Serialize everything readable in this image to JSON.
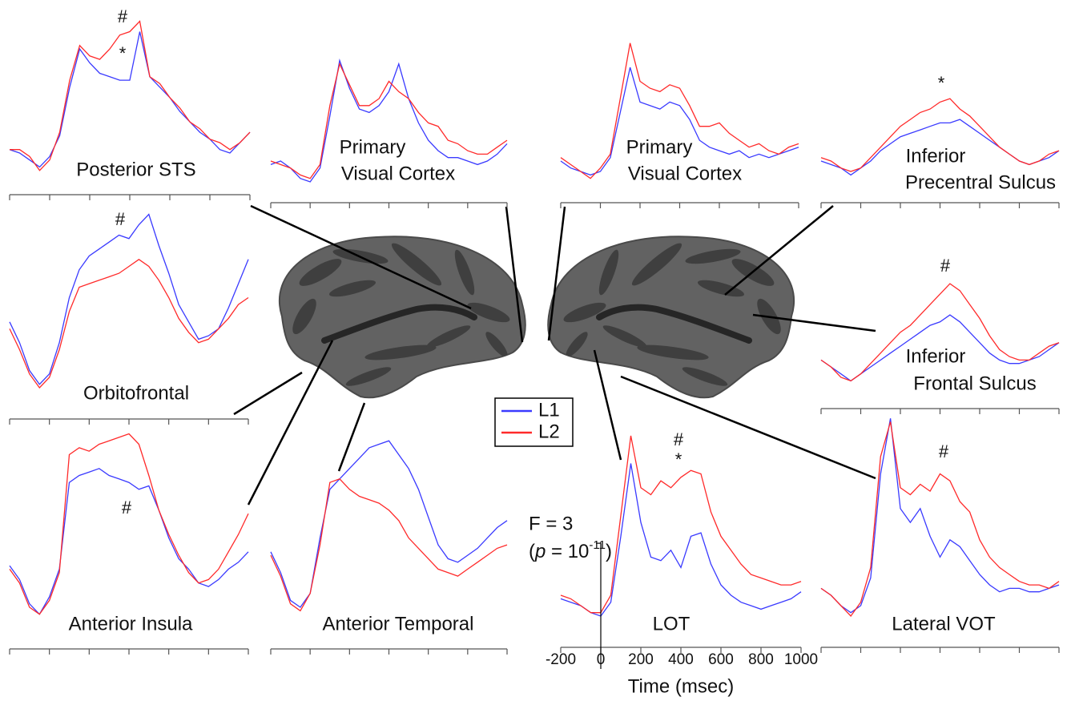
{
  "chart_data": [
    {
      "type": "line",
      "title": [
        "Posterior STS"
      ],
      "annotations": [
        "#",
        "*"
      ],
      "x": [
        -200,
        -150,
        -100,
        -50,
        0,
        50,
        100,
        150,
        200,
        250,
        300,
        350,
        400,
        450,
        500,
        550,
        600,
        650,
        700,
        750,
        800,
        850,
        900,
        950,
        1000
      ],
      "xlim": [
        -200,
        1000
      ],
      "xticks": [
        -200,
        0,
        200,
        400,
        600,
        800,
        1000
      ],
      "show_xtick_labels": false,
      "ylim": [
        0,
        5.4
      ],
      "series": [
        {
          "color": "#3a3aff",
          "values": [
            1.3,
            1.2,
            1.0,
            0.8,
            1.1,
            1.7,
            3.1,
            4.2,
            3.8,
            3.5,
            3.4,
            3.3,
            3.3,
            4.7,
            3.4,
            3.1,
            2.8,
            2.4,
            2.1,
            1.8,
            1.6,
            1.3,
            1.2,
            1.5,
            1.8
          ]
        },
        {
          "color": "#ff2a2a",
          "values": [
            1.3,
            1.3,
            1.1,
            0.7,
            1.0,
            1.8,
            3.3,
            4.3,
            4.0,
            3.9,
            4.2,
            4.6,
            4.7,
            5.0,
            3.4,
            3.2,
            2.8,
            2.5,
            2.1,
            1.9,
            1.6,
            1.5,
            1.3,
            1.5,
            1.8
          ]
        }
      ]
    },
    {
      "type": "line",
      "title": [
        "Primary",
        "Visual Cortex"
      ],
      "annotations": [],
      "x": [
        -200,
        -150,
        -100,
        -50,
        0,
        50,
        100,
        150,
        200,
        250,
        300,
        350,
        400,
        450,
        500,
        550,
        600,
        650,
        700,
        750,
        800,
        850,
        900,
        950,
        1000
      ],
      "xlim": [
        -200,
        1000
      ],
      "xticks": [
        -200,
        0,
        200,
        400,
        600,
        800,
        1000
      ],
      "show_xtick_labels": false,
      "ylim": [
        0,
        4.2
      ],
      "series": [
        {
          "color": "#3a3aff",
          "values": [
            1.1,
            1.2,
            1.0,
            0.7,
            0.6,
            1.0,
            2.5,
            4.1,
            3.3,
            2.7,
            2.6,
            2.8,
            3.2,
            4.0,
            3.0,
            2.3,
            1.8,
            1.5,
            1.3,
            1.3,
            1.2,
            1.1,
            1.2,
            1.4,
            1.7
          ]
        },
        {
          "color": "#ff2a2a",
          "values": [
            1.2,
            1.1,
            1.0,
            0.8,
            0.7,
            1.1,
            2.8,
            4.0,
            3.4,
            2.8,
            2.8,
            3.0,
            3.5,
            3.2,
            3.0,
            2.6,
            2.3,
            2.2,
            1.8,
            1.7,
            1.5,
            1.4,
            1.4,
            1.6,
            1.8
          ]
        }
      ]
    },
    {
      "type": "line",
      "title": [
        "Primary",
        "Visual Cortex"
      ],
      "annotations": [],
      "x": [
        -200,
        -150,
        -100,
        -50,
        0,
        50,
        100,
        150,
        200,
        250,
        300,
        350,
        400,
        450,
        500,
        550,
        600,
        650,
        700,
        750,
        800,
        850,
        900,
        950,
        1000
      ],
      "xlim": [
        -200,
        1000
      ],
      "xticks": [
        -200,
        0,
        200,
        400,
        600,
        800,
        1000
      ],
      "show_xtick_labels": false,
      "ylim": [
        0,
        4.7
      ],
      "series": [
        {
          "color": "#3a3aff",
          "values": [
            1.2,
            1.0,
            0.9,
            0.8,
            0.9,
            1.3,
            2.6,
            3.9,
            2.9,
            2.8,
            2.7,
            2.9,
            2.8,
            2.4,
            1.8,
            1.6,
            1.5,
            1.4,
            1.5,
            1.3,
            1.4,
            1.3,
            1.4,
            1.5,
            1.6
          ]
        },
        {
          "color": "#ff2a2a",
          "values": [
            1.3,
            1.1,
            0.9,
            0.7,
            1.0,
            1.4,
            3.0,
            4.6,
            3.5,
            3.3,
            3.2,
            3.4,
            3.3,
            2.8,
            2.2,
            2.2,
            2.3,
            2.0,
            1.8,
            1.6,
            1.7,
            1.5,
            1.4,
            1.6,
            1.7
          ]
        }
      ]
    },
    {
      "type": "line",
      "title": [
        "Inferior",
        "Precentral Sulcus"
      ],
      "annotations": [
        "*"
      ],
      "x": [
        -200,
        -150,
        -100,
        -50,
        0,
        50,
        100,
        150,
        200,
        250,
        300,
        350,
        400,
        450,
        500,
        550,
        600,
        650,
        700,
        750,
        800,
        850,
        900,
        950,
        1000
      ],
      "xlim": [
        -200,
        1000
      ],
      "xticks": [
        -200,
        0,
        200,
        400,
        600,
        800,
        1000
      ],
      "show_xtick_labels": false,
      "ylim": [
        0,
        3.5
      ],
      "series": [
        {
          "color": "#3a3aff",
          "values": [
            1.2,
            1.1,
            1.0,
            0.8,
            1.0,
            1.2,
            1.5,
            1.7,
            1.9,
            2.0,
            2.1,
            2.2,
            2.3,
            2.3,
            2.4,
            2.2,
            2.0,
            1.8,
            1.6,
            1.4,
            1.2,
            1.1,
            1.2,
            1.3,
            1.5
          ]
        },
        {
          "color": "#ff2a2a",
          "values": [
            1.3,
            1.2,
            1.0,
            0.9,
            1.0,
            1.3,
            1.6,
            1.9,
            2.2,
            2.4,
            2.6,
            2.7,
            2.9,
            3.0,
            2.7,
            2.5,
            2.2,
            1.9,
            1.6,
            1.4,
            1.2,
            1.1,
            1.2,
            1.4,
            1.5
          ]
        }
      ]
    },
    {
      "type": "line",
      "title": [
        "Orbitofrontal"
      ],
      "annotations": [
        "#"
      ],
      "x": [
        -200,
        -150,
        -100,
        -50,
        0,
        50,
        100,
        150,
        200,
        250,
        300,
        350,
        400,
        450,
        500,
        550,
        600,
        650,
        700,
        750,
        800,
        850,
        900,
        950,
        1000
      ],
      "xlim": [
        -200,
        1000
      ],
      "xticks": [
        -200,
        0,
        200,
        400,
        600,
        800,
        1000
      ],
      "show_xtick_labels": false,
      "ylim": [
        0,
        6.1
      ],
      "series": [
        {
          "color": "#3a3aff",
          "values": [
            2.8,
            2.2,
            1.4,
            1.0,
            1.3,
            2.2,
            3.5,
            4.3,
            4.7,
            4.9,
            5.1,
            5.3,
            5.2,
            5.6,
            5.9,
            5.0,
            4.2,
            3.3,
            2.8,
            2.3,
            2.4,
            2.6,
            3.2,
            3.9,
            4.6
          ]
        },
        {
          "color": "#ff2a2a",
          "values": [
            2.6,
            2.0,
            1.3,
            0.9,
            1.2,
            2.0,
            3.1,
            3.8,
            3.9,
            4.0,
            4.1,
            4.2,
            4.4,
            4.6,
            4.4,
            4.0,
            3.5,
            2.9,
            2.5,
            2.2,
            2.3,
            2.6,
            2.9,
            3.3,
            3.5
          ]
        }
      ]
    },
    {
      "type": "line",
      "title": [
        "Inferior",
        "Frontal Sulcus"
      ],
      "annotations": [
        "#"
      ],
      "x": [
        -200,
        -150,
        -100,
        -50,
        0,
        50,
        100,
        150,
        200,
        250,
        300,
        350,
        400,
        450,
        500,
        550,
        600,
        650,
        700,
        750,
        800,
        850,
        900,
        950,
        1000
      ],
      "xlim": [
        -200,
        1000
      ],
      "xticks": [
        -200,
        0,
        200,
        400,
        600,
        800,
        1000
      ],
      "show_xtick_labels": false,
      "ylim": [
        0,
        3.9
      ],
      "series": [
        {
          "color": "#3a3aff",
          "values": [
            1.4,
            1.2,
            1.0,
            0.8,
            1.0,
            1.2,
            1.4,
            1.6,
            1.8,
            2.0,
            2.2,
            2.4,
            2.5,
            2.7,
            2.5,
            2.2,
            1.9,
            1.6,
            1.4,
            1.3,
            1.3,
            1.4,
            1.5,
            1.7,
            1.9
          ]
        },
        {
          "color": "#ff2a2a",
          "values": [
            1.4,
            1.2,
            0.9,
            0.8,
            1.0,
            1.3,
            1.6,
            1.9,
            2.2,
            2.4,
            2.7,
            3.0,
            3.3,
            3.6,
            3.4,
            3.0,
            2.6,
            2.1,
            1.7,
            1.5,
            1.4,
            1.4,
            1.6,
            1.8,
            1.9
          ]
        }
      ]
    },
    {
      "type": "line",
      "title": [
        "Anterior Insula"
      ],
      "annotations": [
        "#"
      ],
      "x": [
        -200,
        -150,
        -100,
        -50,
        0,
        50,
        100,
        150,
        200,
        250,
        300,
        350,
        400,
        450,
        500,
        550,
        600,
        650,
        700,
        750,
        800,
        850,
        900,
        950,
        1000
      ],
      "xlim": [
        -200,
        1000
      ],
      "xticks": [
        -200,
        0,
        200,
        400,
        600,
        800,
        1000
      ],
      "show_xtick_labels": false,
      "ylim": [
        0,
        6.4
      ],
      "series": [
        {
          "color": "#3a3aff",
          "values": [
            2.4,
            2.0,
            1.3,
            1.0,
            1.5,
            2.3,
            4.8,
            5.0,
            5.1,
            5.2,
            5.0,
            4.9,
            4.8,
            4.6,
            4.7,
            4.0,
            3.2,
            2.6,
            2.3,
            1.9,
            1.8,
            2.0,
            2.3,
            2.5,
            2.8
          ]
        },
        {
          "color": "#ff2a2a",
          "values": [
            2.3,
            1.9,
            1.2,
            1.0,
            1.4,
            2.2,
            5.6,
            5.8,
            5.7,
            5.9,
            6.0,
            6.1,
            6.2,
            5.9,
            5.0,
            4.0,
            3.3,
            2.7,
            2.2,
            1.9,
            2.0,
            2.3,
            2.8,
            3.3,
            3.9
          ]
        }
      ]
    },
    {
      "type": "line",
      "title": [
        "Anterior Temporal"
      ],
      "annotations": [],
      "x": [
        -200,
        -150,
        -100,
        -50,
        0,
        50,
        100,
        150,
        200,
        250,
        300,
        350,
        400,
        450,
        500,
        550,
        600,
        650,
        700,
        750,
        800,
        850,
        900,
        950,
        1000
      ],
      "xlim": [
        -200,
        1000
      ],
      "xticks": [
        -200,
        0,
        200,
        400,
        600,
        800,
        1000
      ],
      "show_xtick_labels": false,
      "ylim": [
        0,
        6.2
      ],
      "series": [
        {
          "color": "#3a3aff",
          "values": [
            2.8,
            2.2,
            1.4,
            1.2,
            1.6,
            3.2,
            4.6,
            4.9,
            5.2,
            5.5,
            5.8,
            5.9,
            6.0,
            5.6,
            5.2,
            4.6,
            3.8,
            3.0,
            2.6,
            2.5,
            2.7,
            2.9,
            3.2,
            3.5,
            3.7
          ]
        },
        {
          "color": "#ff2a2a",
          "values": [
            2.7,
            2.1,
            1.3,
            1.1,
            1.6,
            3.0,
            4.8,
            4.9,
            4.6,
            4.4,
            4.3,
            4.2,
            4.0,
            3.7,
            3.2,
            2.9,
            2.6,
            2.3,
            2.2,
            2.1,
            2.3,
            2.5,
            2.7,
            2.9,
            3.0
          ]
        }
      ]
    },
    {
      "type": "line",
      "title": [
        "LOT"
      ],
      "annotations": [
        "#",
        "*"
      ],
      "x": [
        -200,
        -150,
        -100,
        -50,
        0,
        50,
        100,
        150,
        200,
        250,
        300,
        350,
        400,
        450,
        500,
        550,
        600,
        650,
        700,
        750,
        800,
        850,
        900,
        950,
        1000
      ],
      "xlim": [
        -200,
        1000
      ],
      "xticks": [
        -200,
        0,
        200,
        400,
        600,
        800,
        1000
      ],
      "show_xtick_labels": true,
      "ylim": [
        0,
        6.3
      ],
      "xlabel": "Time (msec)",
      "scale_bar": {
        "value": 3,
        "label": "F = 3"
      },
      "p_label": [
        "(",
        "p",
        " = 10",
        "-11",
        ")"
      ],
      "series": [
        {
          "name": "L1",
          "color": "#3a3aff",
          "values": [
            1.4,
            1.3,
            1.2,
            1.0,
            0.9,
            1.3,
            3.2,
            5.3,
            3.6,
            2.6,
            2.5,
            2.8,
            2.3,
            3.2,
            3.3,
            2.4,
            1.8,
            1.5,
            1.3,
            1.2,
            1.1,
            1.2,
            1.3,
            1.4,
            1.6
          ]
        },
        {
          "name": "L2",
          "color": "#ff2a2a",
          "values": [
            1.5,
            1.4,
            1.2,
            1.0,
            1.0,
            1.5,
            3.8,
            6.1,
            4.6,
            4.4,
            4.8,
            4.6,
            4.9,
            5.1,
            5.0,
            3.9,
            3.2,
            2.8,
            2.4,
            2.1,
            2.0,
            1.9,
            1.8,
            1.8,
            1.9
          ]
        }
      ]
    },
    {
      "type": "line",
      "title": [
        "Lateral VOT"
      ],
      "annotations": [
        "#"
      ],
      "x": [
        -200,
        -150,
        -100,
        -50,
        0,
        50,
        100,
        150,
        200,
        250,
        300,
        350,
        400,
        450,
        500,
        550,
        600,
        650,
        700,
        750,
        800,
        850,
        900,
        950,
        1000
      ],
      "xlim": [
        -200,
        1000
      ],
      "xticks": [
        -200,
        0,
        200,
        400,
        600,
        800,
        1000
      ],
      "show_xtick_labels": false,
      "ylim": [
        0,
        6.8
      ],
      "series": [
        {
          "color": "#3a3aff",
          "values": [
            1.7,
            1.5,
            1.2,
            1.0,
            1.2,
            2.0,
            5.0,
            6.6,
            4.0,
            3.6,
            4.0,
            3.2,
            2.6,
            3.1,
            2.9,
            2.5,
            2.1,
            1.8,
            1.6,
            1.7,
            1.7,
            1.6,
            1.6,
            1.7,
            1.8
          ]
        },
        {
          "color": "#ff2a2a",
          "values": [
            1.7,
            1.5,
            1.2,
            0.9,
            1.3,
            2.3,
            5.5,
            6.5,
            4.6,
            4.4,
            4.7,
            4.5,
            5.0,
            4.8,
            4.2,
            3.9,
            3.1,
            2.6,
            2.3,
            2.1,
            1.9,
            1.8,
            1.8,
            1.7,
            1.9
          ]
        }
      ]
    }
  ]
}
